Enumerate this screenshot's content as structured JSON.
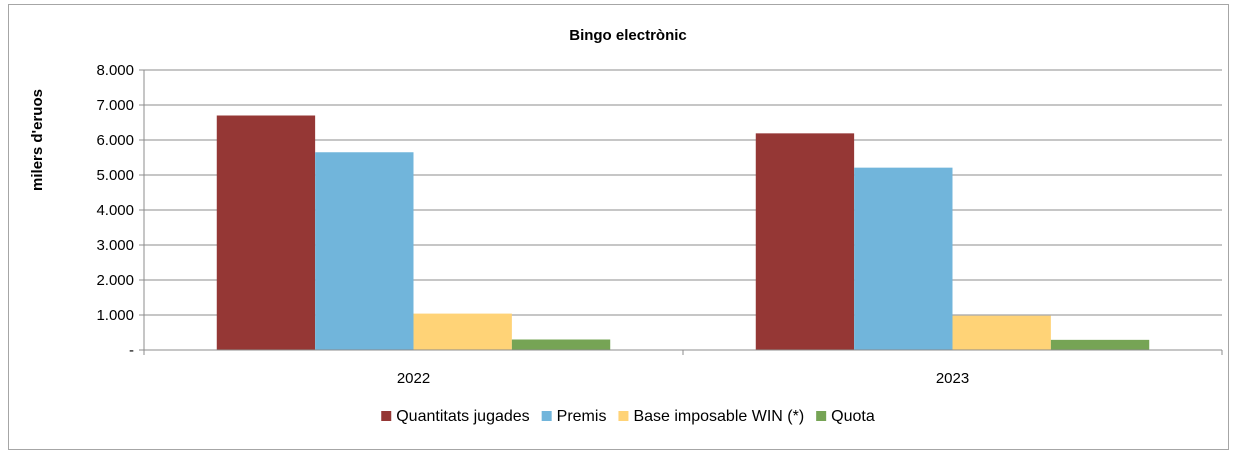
{
  "chart_data": {
    "type": "bar",
    "title": "Bingo electrònic",
    "xlabel": "",
    "ylabel": "milers d'eruos",
    "categories": [
      "2022",
      "2023"
    ],
    "ylim": [
      0,
      8000
    ],
    "yticks": [
      {
        "value": 0,
        "label": "-"
      },
      {
        "value": 1000,
        "label": "1.000"
      },
      {
        "value": 2000,
        "label": "2.000"
      },
      {
        "value": 3000,
        "label": "3.000"
      },
      {
        "value": 4000,
        "label": "4.000"
      },
      {
        "value": 5000,
        "label": "5.000"
      },
      {
        "value": 6000,
        "label": "6.000"
      },
      {
        "value": 7000,
        "label": "7.000"
      },
      {
        "value": 8000,
        "label": "8.000"
      }
    ],
    "grid": true,
    "legend_position": "bottom",
    "series": [
      {
        "name": "Quantitats jugades",
        "color": "#953735",
        "values": [
          6700,
          6190
        ]
      },
      {
        "name": "Premis",
        "color": "#71b5db",
        "values": [
          5650,
          5210
        ]
      },
      {
        "name": "Base imposable WIN (*)",
        "color": "#ffd377",
        "values": [
          1040,
          980
        ]
      },
      {
        "name": "Quota",
        "color": "#76a455",
        "values": [
          300,
          290
        ]
      }
    ]
  }
}
